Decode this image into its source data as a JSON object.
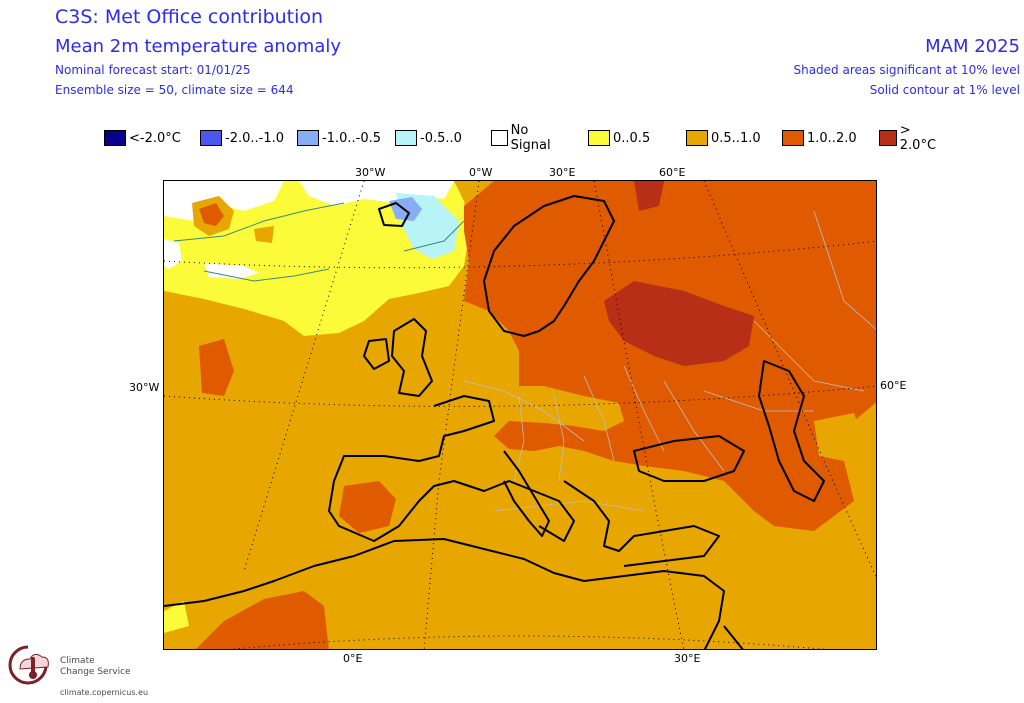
{
  "header": {
    "title": "C3S: Met Office contribution",
    "variable": "Mean 2m temperature anomaly",
    "forecast_start": "Nominal forecast start: 01/01/25",
    "ensemble": "Ensemble size = 50, climate size = 644",
    "season": "MAM 2025",
    "shading_note": "Shaded areas significant at 10% level",
    "contour_note": "Solid contour at 1% level"
  },
  "legend": [
    {
      "label": "<-2.0°C",
      "color": "#08008a"
    },
    {
      "label": "-2.0..-1.0",
      "color": "#4b57f0"
    },
    {
      "label": "-1.0..-0.5",
      "color": "#87aef5"
    },
    {
      "label": "-0.5..0",
      "color": "#b7f3f7"
    },
    {
      "label": "No Signal",
      "color": "#ffffff"
    },
    {
      "label": "0..0.5",
      "color": "#fbfb3a"
    },
    {
      "label": "0.5..1.0",
      "color": "#e8a600"
    },
    {
      "label": "1.0..2.0",
      "color": "#e05a00"
    },
    {
      "label": "> 2.0°C",
      "color": "#b62f16"
    }
  ],
  "axis_labels": {
    "top_30w": "30°W",
    "top_0w": "0°W",
    "top_30e": "30°E",
    "top_60e": "60°E",
    "left_30w": "30°W",
    "right_60e": "60°E",
    "bottom_0e": "0°E",
    "bottom_30e": "30°E"
  },
  "logo": {
    "line1": "Climate",
    "line2": "Change Service",
    "url": "climate.copernicus.eu"
  }
}
